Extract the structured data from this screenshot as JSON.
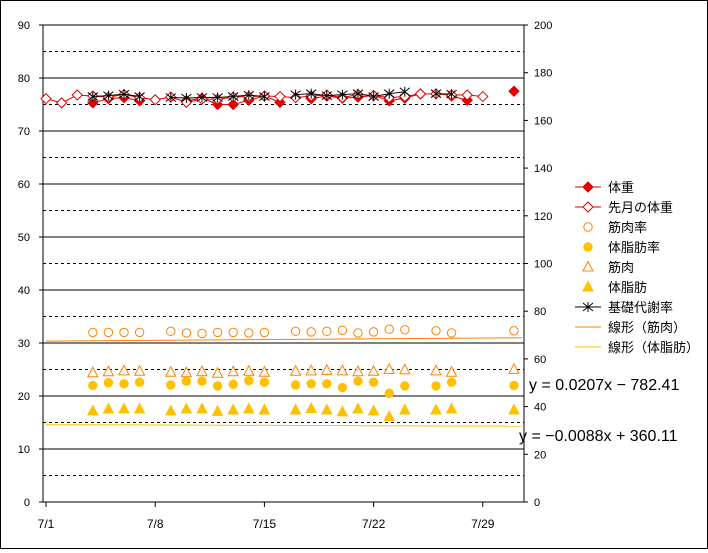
{
  "chart_data": {
    "type": "line",
    "title": "",
    "y_left": {
      "min": 0,
      "max": 90,
      "ticks": [
        0,
        10,
        20,
        30,
        40,
        50,
        60,
        70,
        80,
        90
      ]
    },
    "y_right": {
      "min": 0,
      "max": 200,
      "ticks": [
        0,
        20,
        40,
        60,
        80,
        100,
        120,
        140,
        160,
        180,
        200
      ]
    },
    "x_axis": {
      "min_day": 1,
      "max_day": 32,
      "tick_labels": [
        "7/1",
        "7/8",
        "7/15",
        "7/22",
        "7/29"
      ],
      "tick_days": [
        1,
        8,
        15,
        22,
        29
      ]
    },
    "gridlines": {
      "solid_every": 10,
      "dashed_midpoints": true
    },
    "series": [
      {
        "name": "体重",
        "axis": "left",
        "marker": "diamond-filled",
        "color": "#e00000",
        "points": [
          [
            4,
            75.3
          ],
          [
            5,
            76.1
          ],
          [
            6,
            76.3
          ],
          [
            7,
            75.7
          ],
          [
            10,
            75.7
          ],
          [
            11,
            76.2
          ],
          [
            12,
            75.0
          ],
          [
            13,
            75.0
          ],
          [
            14,
            75.8
          ],
          [
            15,
            76.6
          ],
          [
            16,
            75.4
          ],
          [
            18,
            76.1
          ],
          [
            19,
            76.6
          ],
          [
            20,
            76.2
          ],
          [
            21,
            76.4
          ],
          [
            22,
            76.7
          ],
          [
            23,
            75.7
          ],
          [
            24,
            76.2
          ],
          [
            25,
            77.0
          ],
          [
            27,
            76.6
          ],
          [
            28,
            75.8
          ],
          [
            31,
            77.5
          ]
        ]
      },
      {
        "name": "先月の体重",
        "axis": "left",
        "marker": "diamond-open",
        "color": "#e00000",
        "points": [
          [
            1,
            76.1
          ],
          [
            2,
            75.3
          ],
          [
            3,
            76.8
          ],
          [
            4,
            76.6
          ],
          [
            5,
            76.4
          ],
          [
            6,
            76.9
          ],
          [
            7,
            76.3
          ],
          [
            8,
            75.9
          ],
          [
            9,
            76.4
          ],
          [
            10,
            75.4
          ],
          [
            11,
            76.0
          ],
          [
            12,
            76.0
          ],
          [
            13,
            76.4
          ],
          [
            14,
            76.5
          ],
          [
            15,
            76.6
          ],
          [
            16,
            76.5
          ],
          [
            17,
            76.3
          ],
          [
            18,
            76.6
          ],
          [
            19,
            76.8
          ],
          [
            20,
            76.3
          ],
          [
            21,
            76.9
          ],
          [
            22,
            76.7
          ],
          [
            23,
            76.3
          ],
          [
            24,
            76.5
          ],
          [
            25,
            77.0
          ],
          [
            26,
            77.0
          ],
          [
            27,
            76.8
          ],
          [
            28,
            76.8
          ],
          [
            29,
            76.5
          ]
        ]
      },
      {
        "name": "筋肉率",
        "axis": "left",
        "marker": "circle-open",
        "color": "#ff8000",
        "points": [
          [
            4,
            32.0
          ],
          [
            5,
            32.0
          ],
          [
            6,
            32.0
          ],
          [
            7,
            32.0
          ],
          [
            9,
            32.2
          ],
          [
            10,
            31.9
          ],
          [
            11,
            31.8
          ],
          [
            12,
            32.0
          ],
          [
            13,
            32.0
          ],
          [
            14,
            31.9
          ],
          [
            15,
            32.0
          ],
          [
            17,
            32.2
          ],
          [
            18,
            32.1
          ],
          [
            19,
            32.2
          ],
          [
            20,
            32.4
          ],
          [
            21,
            31.9
          ],
          [
            22,
            32.1
          ],
          [
            23,
            32.6
          ],
          [
            24,
            32.5
          ],
          [
            26,
            32.3
          ],
          [
            27,
            31.9
          ],
          [
            31,
            32.3
          ]
        ]
      },
      {
        "name": "体脂肪率",
        "axis": "left",
        "marker": "circle-filled",
        "color": "#ffc000",
        "points": [
          [
            4,
            22.0
          ],
          [
            5,
            22.5
          ],
          [
            6,
            22.3
          ],
          [
            7,
            22.6
          ],
          [
            9,
            22.1
          ],
          [
            10,
            22.8
          ],
          [
            11,
            22.8
          ],
          [
            12,
            21.9
          ],
          [
            13,
            22.2
          ],
          [
            14,
            22.9
          ],
          [
            15,
            22.6
          ],
          [
            17,
            22.1
          ],
          [
            18,
            22.3
          ],
          [
            19,
            22.3
          ],
          [
            20,
            21.6
          ],
          [
            21,
            22.8
          ],
          [
            22,
            22.6
          ],
          [
            23,
            20.5
          ],
          [
            24,
            21.9
          ],
          [
            26,
            21.9
          ],
          [
            27,
            22.6
          ],
          [
            31,
            22.0
          ]
        ]
      },
      {
        "name": "筋肉",
        "axis": "right",
        "marker": "triangle-open",
        "color": "#ff8000",
        "points": [
          [
            4,
            54.2
          ],
          [
            5,
            54.6
          ],
          [
            6,
            55.0
          ],
          [
            7,
            54.8
          ],
          [
            9,
            54.4
          ],
          [
            10,
            54.2
          ],
          [
            11,
            54.6
          ],
          [
            12,
            54.0
          ],
          [
            13,
            54.6
          ],
          [
            14,
            54.8
          ],
          [
            15,
            54.4
          ],
          [
            17,
            54.8
          ],
          [
            18,
            55.0
          ],
          [
            19,
            55.2
          ],
          [
            20,
            55.0
          ],
          [
            21,
            54.6
          ],
          [
            22,
            54.8
          ],
          [
            23,
            55.6
          ],
          [
            24,
            55.4
          ],
          [
            26,
            55.0
          ],
          [
            27,
            54.4
          ],
          [
            31,
            55.6
          ]
        ]
      },
      {
        "name": "体脂肪",
        "axis": "right",
        "marker": "triangle-filled",
        "color": "#ffc000",
        "points": [
          [
            4,
            38.2
          ],
          [
            5,
            39.0
          ],
          [
            6,
            39.0
          ],
          [
            7,
            39.0
          ],
          [
            9,
            38.2
          ],
          [
            10,
            39.0
          ],
          [
            11,
            39.0
          ],
          [
            12,
            38.0
          ],
          [
            13,
            38.6
          ],
          [
            14,
            39.0
          ],
          [
            15,
            38.6
          ],
          [
            17,
            38.6
          ],
          [
            18,
            39.2
          ],
          [
            19,
            38.6
          ],
          [
            20,
            37.8
          ],
          [
            21,
            39.0
          ],
          [
            22,
            38.2
          ],
          [
            23,
            35.8
          ],
          [
            24,
            38.6
          ],
          [
            26,
            38.6
          ],
          [
            27,
            39.0
          ],
          [
            31,
            38.6
          ]
        ]
      },
      {
        "name": "基礎代謝率",
        "axis": "right",
        "marker": "star-x",
        "color": "#000000",
        "points": [
          [
            4,
            170.0
          ],
          [
            5,
            170.4
          ],
          [
            6,
            171.0
          ],
          [
            7,
            170.0
          ],
          [
            9,
            169.6
          ],
          [
            10,
            169.4
          ],
          [
            11,
            169.6
          ],
          [
            12,
            169.6
          ],
          [
            13,
            170.0
          ],
          [
            14,
            170.6
          ],
          [
            15,
            170.0
          ],
          [
            17,
            170.8
          ],
          [
            18,
            171.2
          ],
          [
            19,
            170.4
          ],
          [
            20,
            170.8
          ],
          [
            21,
            171.2
          ],
          [
            22,
            170.0
          ],
          [
            23,
            171.2
          ],
          [
            24,
            172.0
          ],
          [
            26,
            171.2
          ],
          [
            27,
            171.0
          ]
        ]
      }
    ],
    "trendlines": [
      {
        "name": "線形（筋肉）",
        "axis": "left",
        "color": "#ff8000",
        "slope": 0.0207,
        "intercept": -782.41,
        "equation": "y = 0.0207x − 782.41"
      },
      {
        "name": "線形（体脂肪）",
        "axis": "left",
        "color": "#ffc000",
        "slope": -0.0088,
        "intercept": 360.11,
        "equation": "y = −0.0088x + 360.11"
      }
    ],
    "legend_position": "right"
  }
}
